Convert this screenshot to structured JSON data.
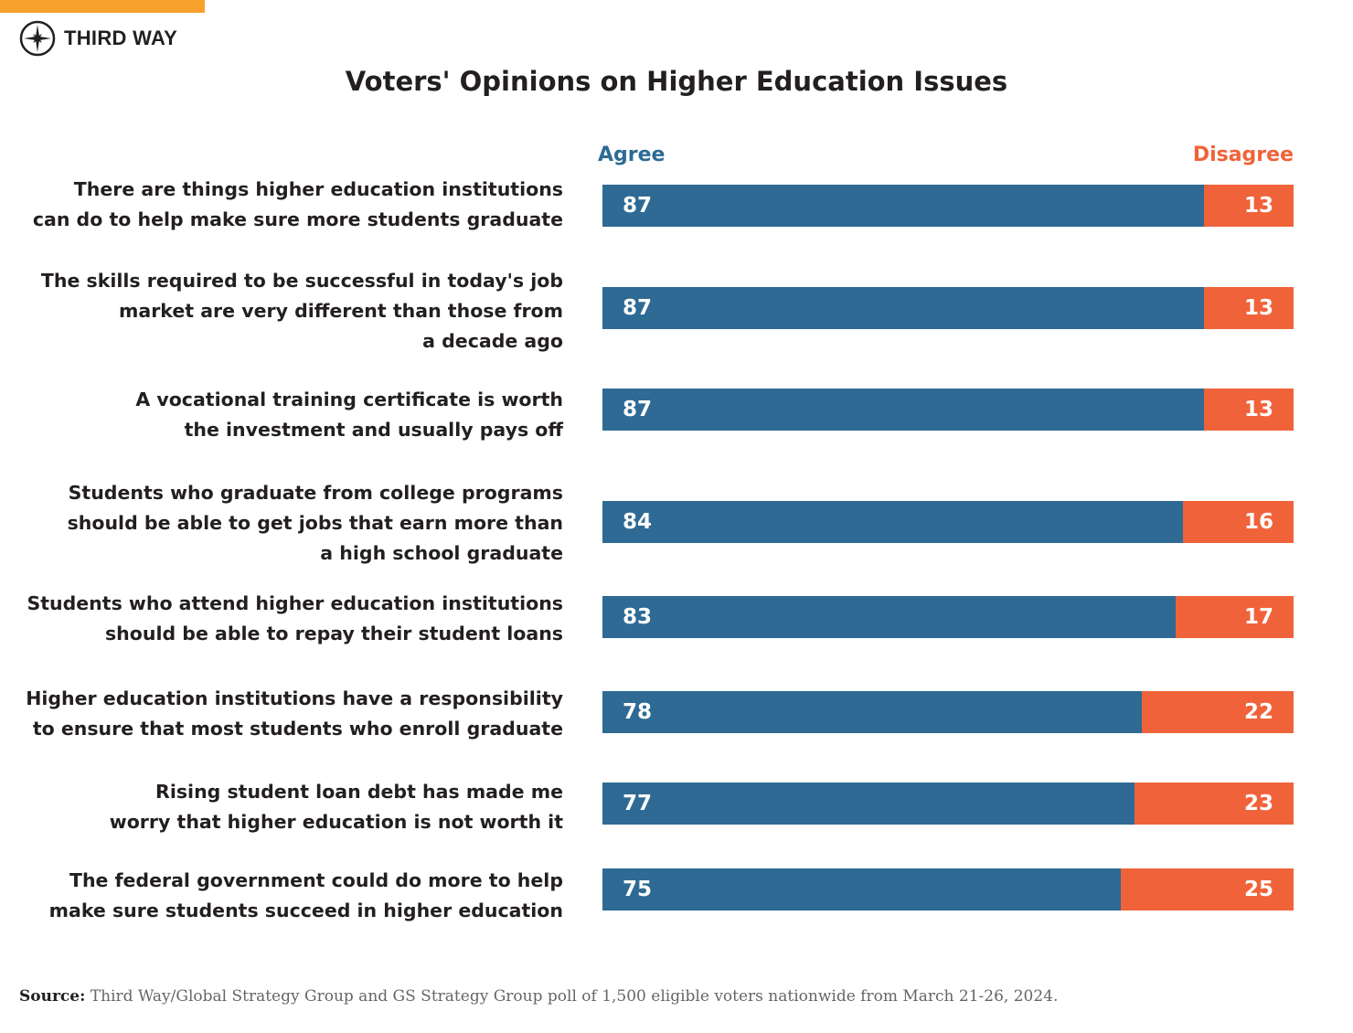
{
  "brand": {
    "name": "THIRD WAY",
    "accent": "#F9A12D"
  },
  "colors": {
    "agree": "#2E6A94",
    "disagree": "#F0633A"
  },
  "chart_data": {
    "type": "bar",
    "orientation": "horizontal-stacked",
    "title": "Voters' Opinions on Higher Education Issues",
    "legend": {
      "agree": "Agree",
      "disagree": "Disagree"
    },
    "categories": [
      [
        "There are things higher education institutions",
        "can do to help make sure more students graduate"
      ],
      [
        "The skills required to be successful in today's job",
        "market are very different than those from",
        "a decade ago"
      ],
      [
        "A vocational training certificate is worth",
        "the investment and usually pays off"
      ],
      [
        "Students who graduate from college programs",
        "should be able to get jobs that earn more than",
        "a high school graduate"
      ],
      [
        "Students who attend higher education institutions",
        "should be able to repay their student loans"
      ],
      [
        "Higher education institutions have a responsibility",
        "to ensure that most students who enroll graduate"
      ],
      [
        "Rising student loan debt has made me",
        "worry that higher education is not worth it"
      ],
      [
        "The federal government could do more to help",
        "make sure students succeed in higher education"
      ]
    ],
    "series": [
      {
        "name": "Agree",
        "values": [
          87,
          87,
          87,
          84,
          83,
          78,
          77,
          75
        ]
      },
      {
        "name": "Disagree",
        "values": [
          13,
          13,
          13,
          16,
          17,
          22,
          23,
          25
        ]
      }
    ],
    "xlim": [
      0,
      100
    ]
  },
  "source": {
    "label": "Source:",
    "text": " Third Way/Global Strategy Group and GS Strategy Group poll of 1,500 eligible voters nationwide from March 21-26, 2024."
  }
}
